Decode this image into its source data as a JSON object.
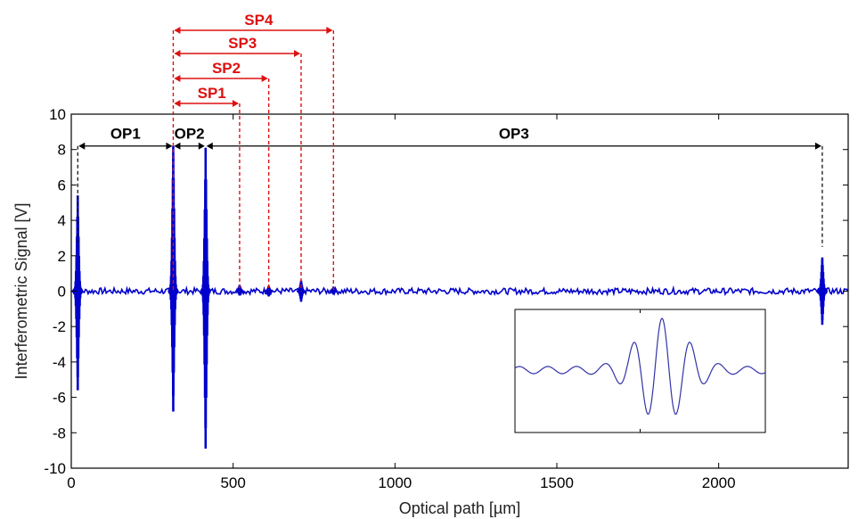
{
  "chart_data": {
    "type": "line",
    "xlabel": "Optical path [µm]",
    "ylabel": "Interferometric Signal [V]",
    "xlim": [
      0,
      2400
    ],
    "ylim": [
      -10,
      10
    ],
    "xticks": [
      0,
      500,
      1000,
      1500,
      2000
    ],
    "xtick_labels": [
      "0",
      "500",
      "1000",
      "1500",
      "2000"
    ],
    "yticks": [
      10,
      8,
      6,
      4,
      2,
      0,
      -2,
      -4,
      -6,
      -8,
      -10
    ],
    "ytick_labels": [
      "10",
      "8",
      "6",
      "4",
      "2",
      "0",
      "-2",
      "-4",
      "-6",
      "-8",
      "-10"
    ],
    "series": [
      {
        "name": "Interferometric signal",
        "color": "#0000cc",
        "peaks": [
          {
            "x": 20,
            "max": 5.4,
            "min": -5.6
          },
          {
            "x": 315,
            "max": 8.2,
            "min": -6.8
          },
          {
            "x": 415,
            "max": 8.1,
            "min": -8.9
          },
          {
            "x": 520,
            "max": 0.35,
            "min": -0.25
          },
          {
            "x": 610,
            "max": 0.3,
            "min": -0.3
          },
          {
            "x": 710,
            "max": 0.6,
            "min": -0.6
          },
          {
            "x": 810,
            "max": 0.25,
            "min": -0.2
          },
          {
            "x": 2320,
            "max": 1.9,
            "min": -1.9
          }
        ]
      }
    ],
    "annotations": {
      "black": [
        {
          "label": "OP1",
          "x1": 20,
          "x2": 315,
          "y": 8.2
        },
        {
          "label": "OP2",
          "x1": 315,
          "x2": 415,
          "y": 8.2
        },
        {
          "label": "OP3",
          "x1": 415,
          "x2": 2320,
          "y": 8.2
        }
      ],
      "red": [
        {
          "label": "SP1",
          "x1": 315,
          "x2": 520
        },
        {
          "label": "SP2",
          "x1": 315,
          "x2": 610
        },
        {
          "label": "SP3",
          "x1": 315,
          "x2": 710
        },
        {
          "label": "SP4",
          "x1": 315,
          "x2": 810
        }
      ],
      "black_color": "#000000",
      "red_color": "#dd1111"
    },
    "inset": {
      "description_color": "#3333aa"
    }
  }
}
